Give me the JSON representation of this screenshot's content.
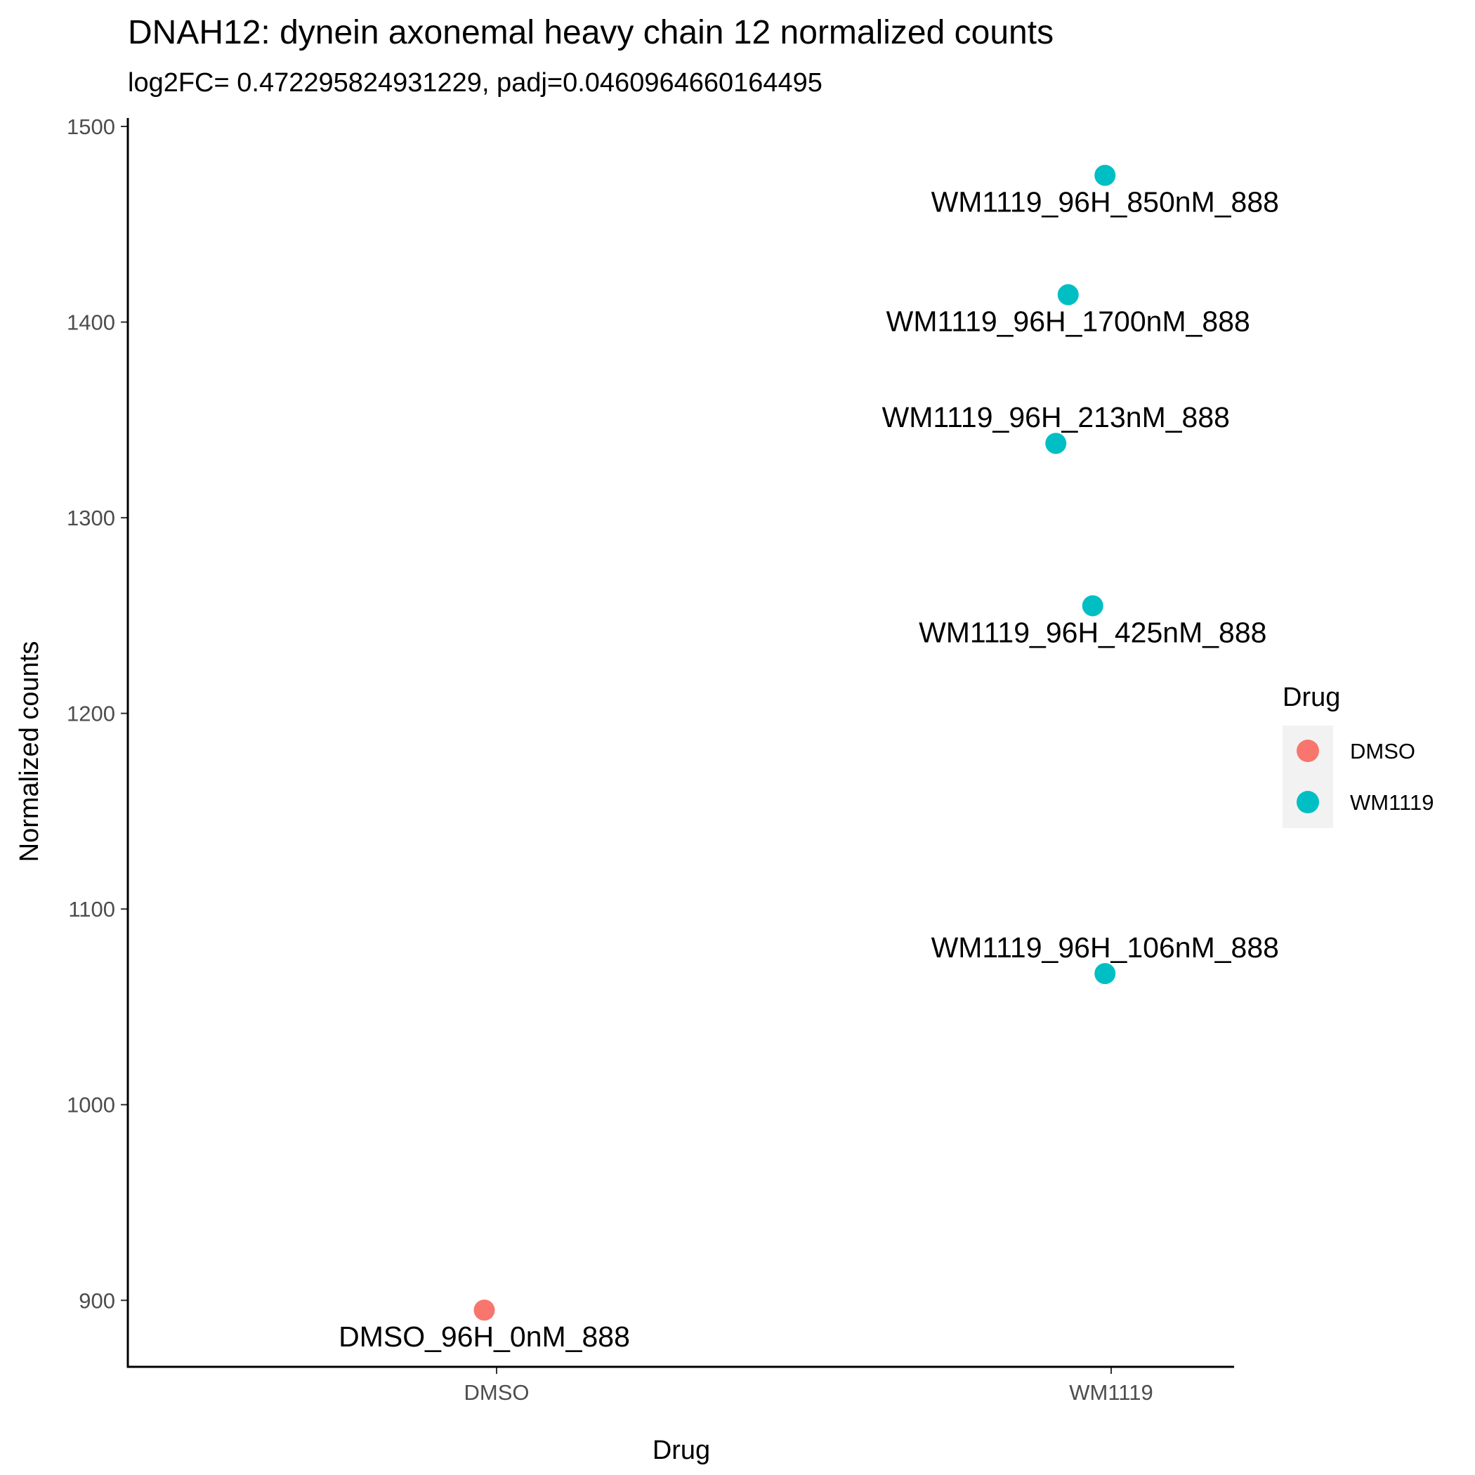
{
  "chart_data": {
    "type": "scatter",
    "title": "DNAH12: dynein axonemal heavy chain 12 normalized counts",
    "subtitle": "log2FC= 0.472295824931229, padj=0.0460964660164495",
    "xlabel": "Drug",
    "ylabel": "Normalized counts",
    "categories": [
      "DMSO",
      "WM1119"
    ],
    "ylim": [
      866,
      1500
    ],
    "yticks": [
      900,
      1000,
      1100,
      1200,
      1300,
      1400,
      1500
    ],
    "grid": false,
    "legend": {
      "title": "Drug",
      "position": "right",
      "entries": [
        {
          "label": "DMSO",
          "color": "#F8766D"
        },
        {
          "label": "WM1119",
          "color": "#00BFC4"
        }
      ]
    },
    "points": [
      {
        "group": "DMSO",
        "x": "DMSO",
        "y": 895,
        "label": "DMSO_96H_0nM_888",
        "jitter": -0.02,
        "label_pos": "below"
      },
      {
        "group": "WM1119",
        "x": "WM1119",
        "y": 1475,
        "label": "WM1119_96H_850nM_888",
        "jitter": -0.01,
        "label_pos": "below"
      },
      {
        "group": "WM1119",
        "x": "WM1119",
        "y": 1414,
        "label": "WM1119_96H_1700nM_888",
        "jitter": -0.07,
        "label_pos": "below"
      },
      {
        "group": "WM1119",
        "x": "WM1119",
        "y": 1338,
        "label": "WM1119_96H_213nM_888",
        "jitter": -0.09,
        "label_pos": "above"
      },
      {
        "group": "WM1119",
        "x": "WM1119",
        "y": 1255,
        "label": "WM1119_96H_425nM_888",
        "jitter": -0.03,
        "label_pos": "below"
      },
      {
        "group": "WM1119",
        "x": "WM1119",
        "y": 1067,
        "label": "WM1119_96H_106nM_888",
        "jitter": -0.01,
        "label_pos": "above"
      }
    ]
  }
}
